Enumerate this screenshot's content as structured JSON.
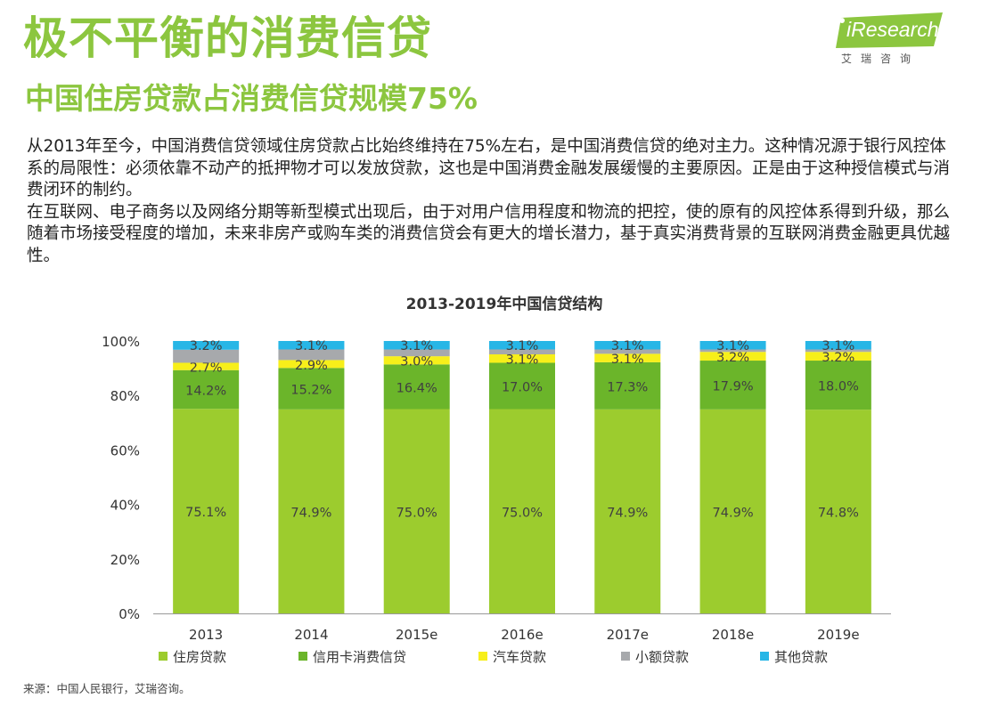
{
  "header": {
    "title": "极不平衡的消费信贷",
    "subtitle": "中国住房贷款占消费信贷规模75%",
    "logo": {
      "brand": "iResearch",
      "tagline": "艾瑞咨询",
      "accent": "#8cc63f"
    }
  },
  "body": {
    "paragraphs": [
      "从2013年至今，中国消费信贷领域住房贷款占比始终维持在75%左右，是中国消费信贷的绝对主力。这种情况源于银行风控体系的局限性：必须依靠不动产的抵押物才可以发放贷款，这也是中国消费金融发展缓慢的主要原因。正是由于这种授信模式与消费闭环的制约。",
      "在互联网、电子商务以及网络分期等新型模式出现后，由于对用户信用程度和物流的把控，使的原有的风控体系得到升级，那么随着市场接受程度的增加，未来非房产或购车类的消费信贷会有更大的增长潜力，基于真实消费背景的互联网消费金融更具优越性。"
    ]
  },
  "chart_data": {
    "type": "stacked-bar",
    "title": "2013-2019年中国信贷结构",
    "categories": [
      "2013",
      "2014",
      "2015e",
      "2016e",
      "2017e",
      "2018e",
      "2019e"
    ],
    "ylim": [
      0,
      100
    ],
    "yticks": [
      "0%",
      "20%",
      "40%",
      "60%",
      "80%",
      "100%"
    ],
    "legend_position": "bottom",
    "series": [
      {
        "name": "住房贷款",
        "color": "#9ccc2e",
        "values": [
          75.1,
          74.9,
          75.0,
          75.0,
          74.9,
          74.9,
          74.8
        ],
        "labels": [
          "75.1%",
          "74.9%",
          "75.0%",
          "75.0%",
          "74.9%",
          "74.9%",
          "74.8%"
        ]
      },
      {
        "name": "信用卡消费信贷",
        "color": "#6bb52a",
        "values": [
          14.2,
          15.2,
          16.4,
          17.0,
          17.3,
          17.9,
          18.0
        ],
        "labels": [
          "14.2%",
          "15.2%",
          "16.4%",
          "17.0%",
          "17.3%",
          "17.9%",
          "18.0%"
        ]
      },
      {
        "name": "汽车贷款",
        "color": "#f7ef1a",
        "values": [
          2.7,
          2.9,
          3.0,
          3.1,
          3.1,
          3.2,
          3.2
        ],
        "labels": [
          "2.7%",
          "2.9%",
          "3.0%",
          "3.1%",
          "3.1%",
          "3.2%",
          "3.2%"
        ]
      },
      {
        "name": "小额贷款",
        "color": "#a7a9ac",
        "values": [
          4.8,
          3.9,
          2.5,
          1.8,
          1.6,
          0.9,
          0.9
        ]
      },
      {
        "name": "其他贷款",
        "color": "#27b6e6",
        "values": [
          3.2,
          3.1,
          3.1,
          3.1,
          3.1,
          3.1,
          3.1
        ],
        "labels": [
          "3.2%",
          "3.1%",
          "3.1%",
          "3.1%",
          "3.1%",
          "3.1%",
          "3.1%"
        ]
      }
    ]
  },
  "footer": {
    "source": "来源：中国人民银行，艾瑞咨询。"
  }
}
